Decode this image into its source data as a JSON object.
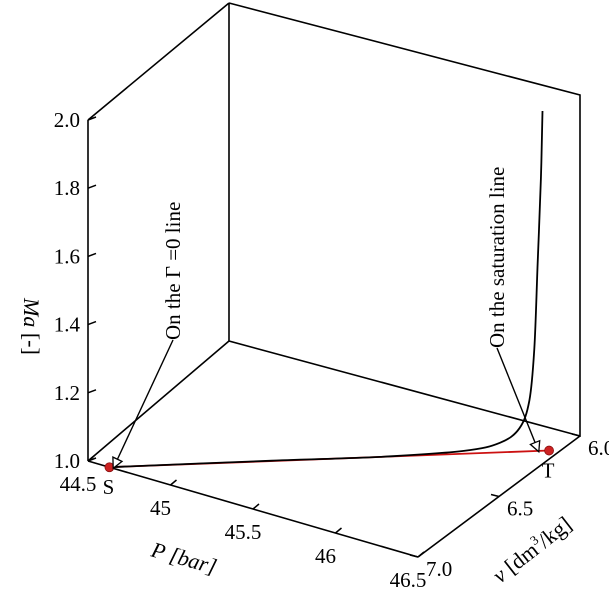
{
  "chart_data": {
    "type": "line3d",
    "axes": {
      "x": {
        "label_symbol": "P",
        "label_unit": "[bar]",
        "range": [
          44.5,
          46.5
        ],
        "ticks": [
          "44.5",
          "45",
          "45.5",
          "46",
          "46.5"
        ],
        "tick_values": [
          44.5,
          45,
          45.5,
          46,
          46.5
        ]
      },
      "y": {
        "label_symbol": "v",
        "label_unit_pre": "[dm",
        "label_unit_sup": "3",
        "label_unit_post": "/kg]",
        "range": [
          6.0,
          7.0
        ],
        "ticks": [
          "6.0",
          "6.5",
          "7.0"
        ],
        "tick_values": [
          6.0,
          6.5,
          7.0
        ]
      },
      "z": {
        "label_symbol": "Ma",
        "label_unit": "[-]",
        "range": [
          1.0,
          2.0
        ],
        "ticks": [
          "1.0",
          "1.2",
          "1.4",
          "1.6",
          "1.8",
          "2.0"
        ],
        "tick_values": [
          1.0,
          1.2,
          1.4,
          1.6,
          1.7999999999999998,
          2.0
        ]
      }
    },
    "series": [
      {
        "points": [
          {
            "P": 44.63,
            "v": 7.0,
            "Ma": 1.0
          },
          {
            "P": 46.45,
            "v": 6.14,
            "Ma": 1.0
          }
        ],
        "color": "#cc1111"
      },
      {
        "points": [
          {
            "P": 44.63,
            "v": 7.0,
            "Ma": 1.0
          },
          {
            "P": 45.3,
            "v": 6.68,
            "Ma": 1.0
          },
          {
            "P": 45.75,
            "v": 6.47,
            "Ma": 1.0
          },
          {
            "P": 46.1,
            "v": 6.31,
            "Ma": 1.01
          },
          {
            "P": 46.25,
            "v": 6.24,
            "Ma": 1.03
          },
          {
            "P": 46.33,
            "v": 6.2,
            "Ma": 1.07
          },
          {
            "P": 46.37,
            "v": 6.18,
            "Ma": 1.15
          },
          {
            "P": 46.39,
            "v": 6.17,
            "Ma": 1.3
          },
          {
            "P": 46.41,
            "v": 6.17,
            "Ma": 1.55
          },
          {
            "P": 46.42,
            "v": 6.16,
            "Ma": 1.8
          },
          {
            "P": 46.43,
            "v": 6.16,
            "Ma": 2.0
          }
        ],
        "color": "#000000"
      }
    ],
    "points": [
      {
        "label": "S",
        "P": 44.63,
        "v": 7.0,
        "Ma": 1.0,
        "color": "#cc2222"
      },
      {
        "label": "T",
        "P": 46.45,
        "v": 6.14,
        "Ma": 1.0,
        "color": "#cc2222"
      }
    ],
    "annotations": [
      {
        "text": "On the Γ =0 line",
        "target": "S"
      },
      {
        "text": "On the saturation line",
        "target": "T"
      }
    ],
    "grid": false,
    "legend": "none"
  }
}
